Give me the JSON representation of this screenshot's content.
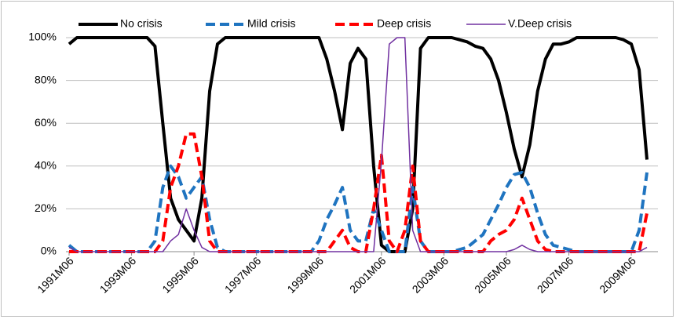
{
  "chart_data": {
    "type": "line",
    "categories": [
      "1991M06",
      null,
      null,
      null,
      null,
      null,
      null,
      null,
      "1993M06",
      null,
      null,
      null,
      null,
      null,
      null,
      null,
      "1995M06",
      null,
      null,
      null,
      null,
      null,
      null,
      null,
      "1997M06",
      null,
      null,
      null,
      null,
      null,
      null,
      null,
      "1999M06",
      null,
      null,
      null,
      null,
      null,
      null,
      null,
      "2001M06",
      null,
      null,
      null,
      null,
      null,
      null,
      null,
      "2003M06",
      null,
      null,
      null,
      null,
      null,
      null,
      null,
      "2005M06",
      null,
      null,
      null,
      null,
      null,
      null,
      null,
      "2007M06",
      null,
      null,
      null,
      null,
      null,
      null,
      null,
      "2009M06",
      null,
      null
    ],
    "series": [
      {
        "name": "No crisis",
        "color": "#000000",
        "dashed": false,
        "width": 4,
        "values": [
          97,
          100,
          100,
          100,
          100,
          100,
          100,
          100,
          100,
          100,
          100,
          96,
          60,
          25,
          15,
          10,
          5,
          25,
          75,
          97,
          100,
          100,
          100,
          100,
          100,
          100,
          100,
          100,
          100,
          100,
          100,
          100,
          100,
          90,
          75,
          57,
          88,
          95,
          90,
          40,
          3,
          0,
          0,
          0,
          20,
          95,
          100,
          100,
          100,
          100,
          99,
          98,
          96,
          95,
          90,
          80,
          65,
          48,
          35,
          50,
          75,
          90,
          97,
          97,
          98,
          100,
          100,
          100,
          100,
          100,
          100,
          99,
          97,
          85,
          43
        ]
      },
      {
        "name": "Mild crisis",
        "color": "#1f74c0",
        "dashed": true,
        "width": 4,
        "values": [
          3,
          0,
          0,
          0,
          0,
          0,
          0,
          0,
          0,
          0,
          0,
          5,
          30,
          40,
          35,
          25,
          30,
          35,
          15,
          2,
          0,
          0,
          0,
          0,
          0,
          0,
          0,
          0,
          0,
          0,
          0,
          0,
          5,
          15,
          22,
          30,
          10,
          5,
          5,
          20,
          10,
          0,
          0,
          0,
          30,
          5,
          0,
          0,
          0,
          0,
          1,
          2,
          5,
          8,
          15,
          22,
          30,
          36,
          37,
          30,
          18,
          8,
          3,
          2,
          1,
          0,
          0,
          0,
          0,
          0,
          0,
          0,
          0,
          10,
          37
        ]
      },
      {
        "name": "Deep crisis",
        "color": "#ff0000",
        "dashed": true,
        "width": 4,
        "values": [
          0,
          0,
          0,
          0,
          0,
          0,
          0,
          0,
          0,
          0,
          0,
          0,
          5,
          30,
          40,
          55,
          55,
          35,
          5,
          0,
          0,
          0,
          0,
          0,
          0,
          0,
          0,
          0,
          0,
          0,
          0,
          0,
          0,
          0,
          5,
          10,
          2,
          0,
          0,
          20,
          45,
          5,
          0,
          10,
          40,
          5,
          0,
          0,
          0,
          0,
          0,
          0,
          0,
          0,
          5,
          8,
          10,
          15,
          25,
          15,
          5,
          1,
          0,
          0,
          0,
          0,
          0,
          0,
          0,
          0,
          0,
          0,
          0,
          0,
          18
        ]
      },
      {
        "name": "V.Deep crisis",
        "color": "#7030a0",
        "dashed": false,
        "width": 1.5,
        "values": [
          2,
          0,
          0,
          0,
          0,
          0,
          0,
          0,
          0,
          0,
          0,
          0,
          0,
          5,
          8,
          20,
          10,
          2,
          0,
          0,
          0,
          0,
          0,
          0,
          0,
          0,
          0,
          0,
          0,
          0,
          0,
          0,
          0,
          0,
          0,
          0,
          0,
          0,
          0,
          0,
          42,
          97,
          100,
          100,
          10,
          0,
          0,
          0,
          0,
          0,
          0,
          0,
          0,
          0,
          0,
          0,
          0,
          1,
          3,
          1,
          0,
          0,
          0,
          0,
          0,
          0,
          0,
          0,
          0,
          0,
          0,
          0,
          0,
          0,
          2
        ]
      }
    ],
    "ylim": [
      0,
      100
    ],
    "yticks": [
      {
        "value": 0,
        "label": "0%"
      },
      {
        "value": 20,
        "label": "20%"
      },
      {
        "value": 40,
        "label": "40%"
      },
      {
        "value": 60,
        "label": "60%"
      },
      {
        "value": 80,
        "label": "80%"
      },
      {
        "value": 100,
        "label": "100%"
      }
    ],
    "grid": true,
    "legend": "top"
  }
}
